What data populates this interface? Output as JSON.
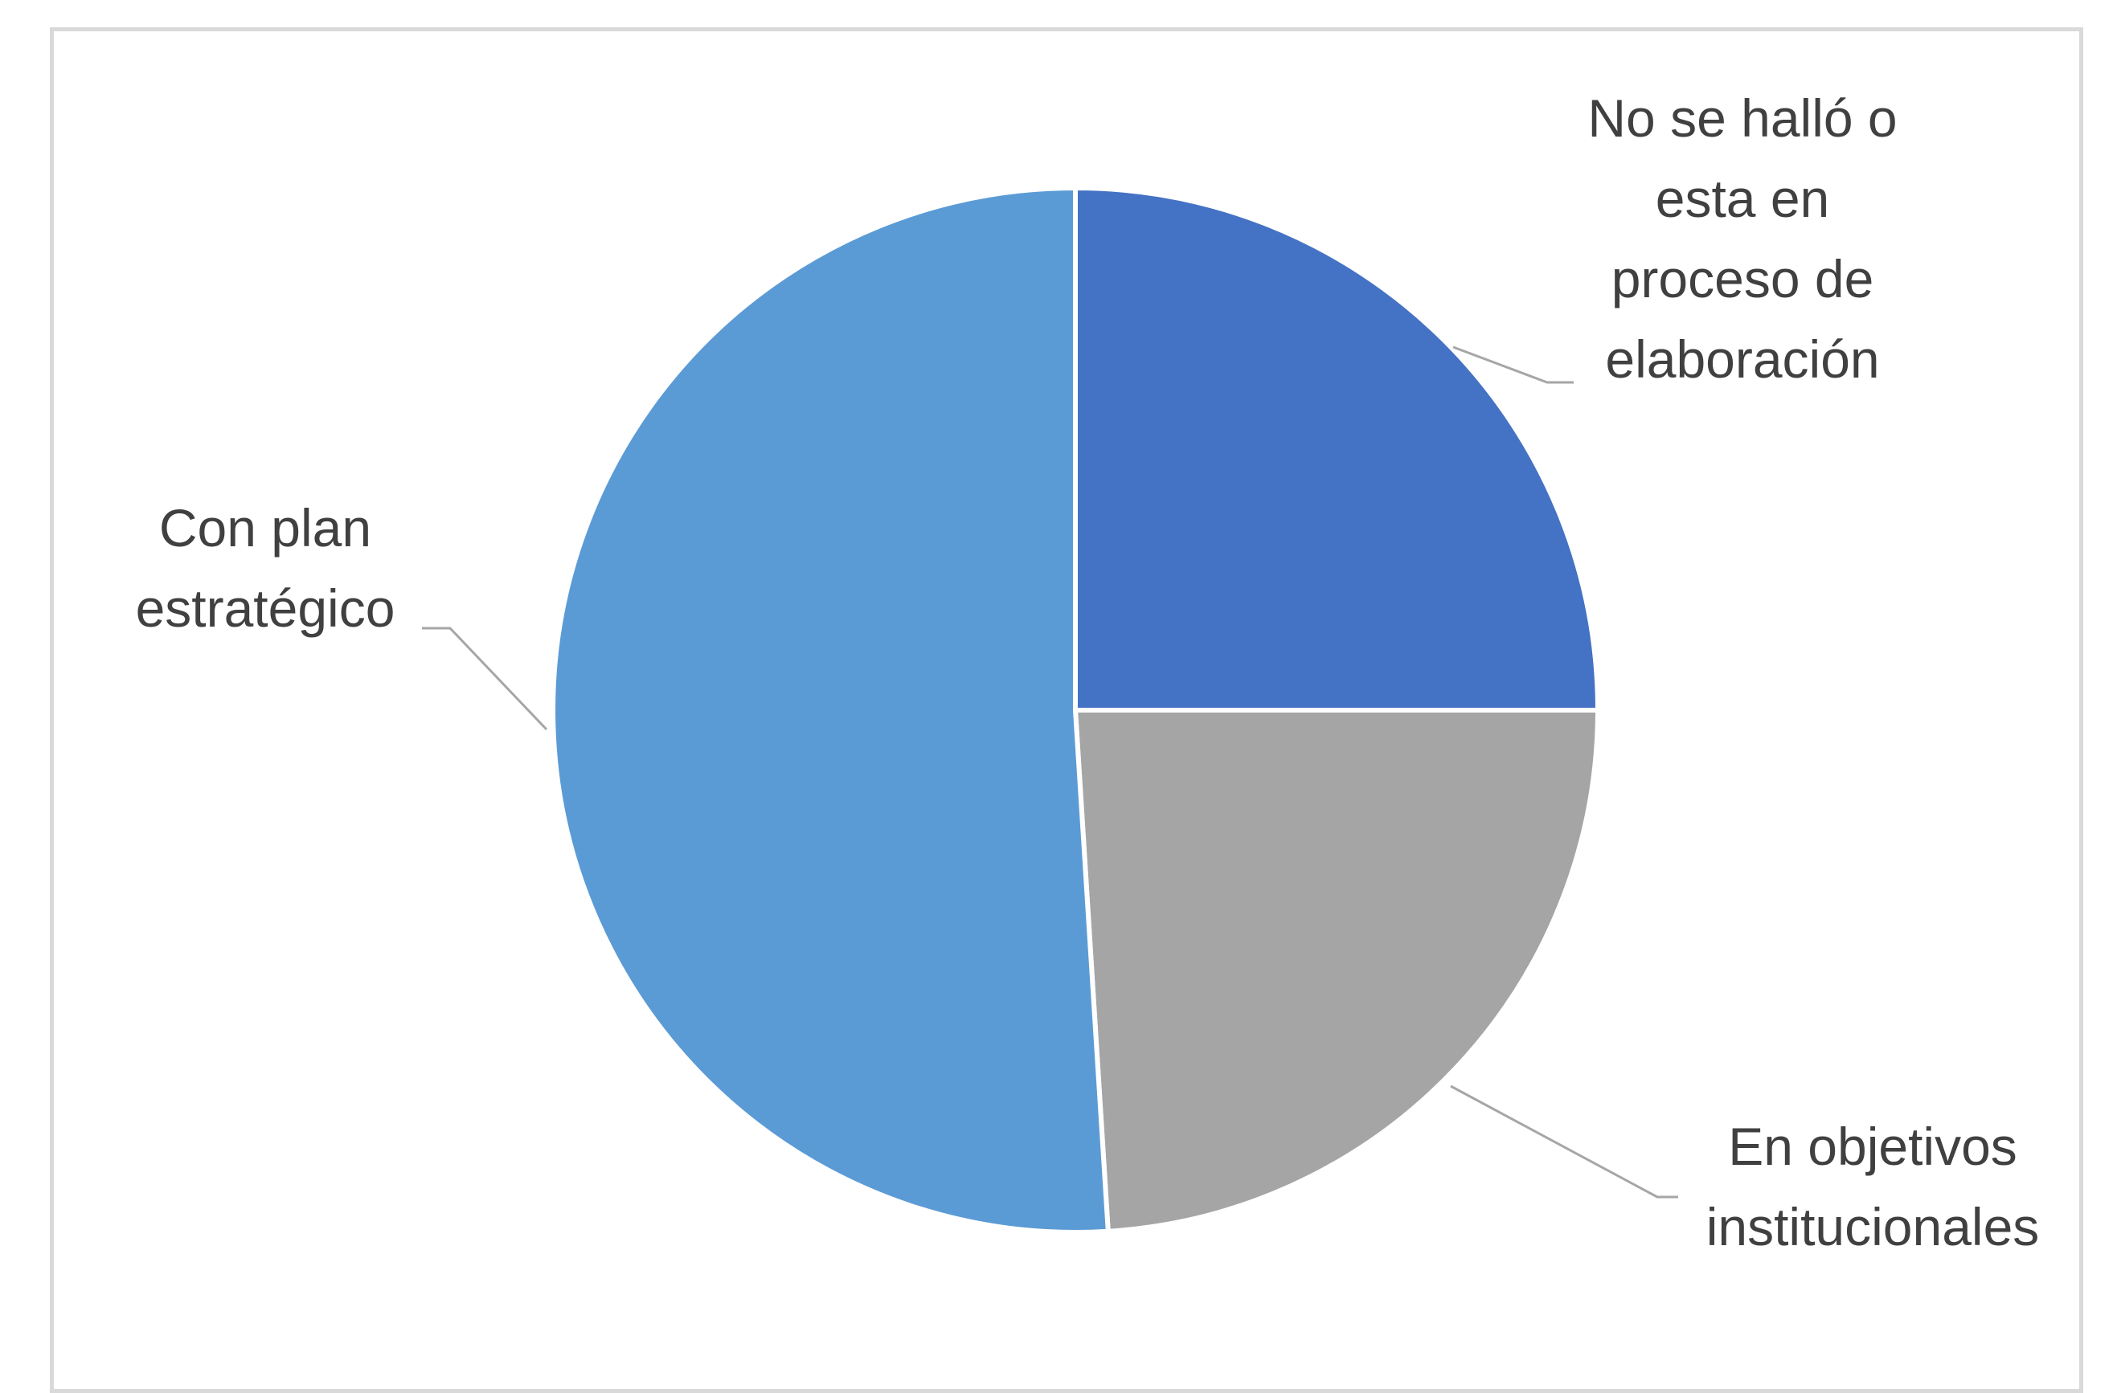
{
  "chart_data": {
    "type": "pie",
    "title": "",
    "slices": [
      {
        "label_lines": [
          "No se halló o",
          "esta en",
          "proceso de",
          "elaboración"
        ],
        "value": 25,
        "color": "#4472c4"
      },
      {
        "label_lines": [
          "En objetivos",
          "institucionales"
        ],
        "value": 24,
        "color": "#a5a5a5"
      },
      {
        "label_lines": [
          "Con plan",
          "estratégico"
        ],
        "value": 51,
        "color": "#5b9bd5"
      }
    ],
    "legend": "none",
    "data_labels": "category names outside with leader lines"
  }
}
